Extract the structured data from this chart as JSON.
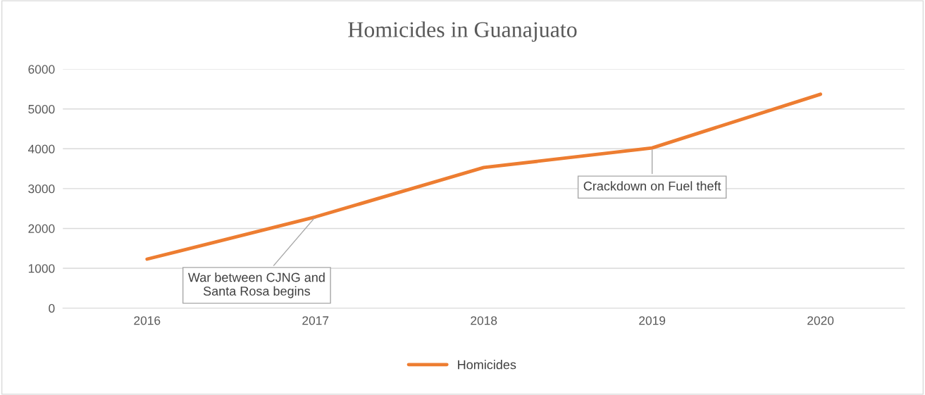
{
  "chart_data": {
    "type": "line",
    "title": "Homicides in Guanajuato",
    "categories": [
      "2016",
      "2017",
      "2018",
      "2019",
      "2020"
    ],
    "series": [
      {
        "name": "Homicides",
        "color": "#ed7d31",
        "values": [
          1230,
          2290,
          3530,
          4020,
          5370
        ]
      }
    ],
    "ylim": [
      0,
      6000
    ],
    "yticks": [
      0,
      1000,
      2000,
      3000,
      4000,
      5000,
      6000
    ],
    "grid": "y",
    "legend": "bottom",
    "marker": "none",
    "line_style": "solid",
    "annotations": [
      {
        "text": "War between CJNG and\nSanta Rosa begins",
        "x": "2017",
        "y": 2290
      },
      {
        "text": "Crackdown on Fuel theft",
        "x": "2019",
        "y": 4020
      }
    ]
  }
}
